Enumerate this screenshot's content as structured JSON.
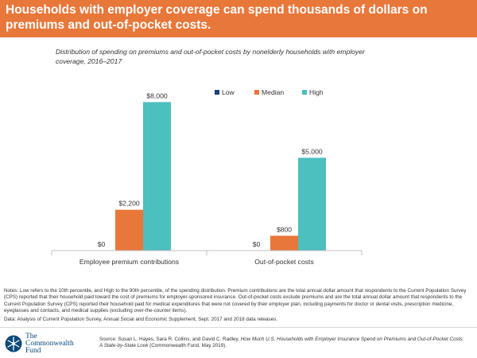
{
  "header": {
    "title": "Households with employer coverage can spend thousands of dollars on premiums and out-of-pocket costs."
  },
  "subtitle": "Distribution of spending on premiums and out-of-pocket costs by nonelderly households with employer coverage, 2016–2017",
  "chart_data": {
    "type": "bar",
    "title": "Distribution of spending on premiums and out-of-pocket costs by nonelderly households with employer coverage, 2016–2017",
    "categories": [
      "Employee premium contributions",
      "Out-of-pocket costs"
    ],
    "series": [
      {
        "name": "Low",
        "values": [
          0,
          0
        ],
        "labels": [
          "$0",
          "$0"
        ],
        "color": "#1f3f7a"
      },
      {
        "name": "Median",
        "values": [
          2200,
          800
        ],
        "labels": [
          "$2,200",
          "$800"
        ],
        "color": "#e8773a"
      },
      {
        "name": "High",
        "values": [
          8000,
          5000
        ],
        "labels": [
          "$8,000",
          "$5,000"
        ],
        "color": "#4cbfbf"
      }
    ],
    "ylim": [
      0,
      9000
    ],
    "xlabel": "",
    "ylabel": "",
    "grid": false,
    "legend_position": "top-right"
  },
  "notes": "Notes: Low refers to the 10th percentile, and High to the 90th percentile, of the spending distribution. Premium contributions are the total annual dollar amount that respondents to the Current Population Survey (CPS) reported that their household paid toward the cost of premiums for employer-sponsored insurance. Out-of-pocket costs exclude premiums and are the total annual dollar amount that respondents to the Current Population Survey (CPS) reported their household paid for medical expenditures that were not covered by their employer plan, including payments for doctor or dental visits, prescription medicine, eyeglasses and contacts, and medical supplies (excluding over-the-counter items).",
  "data_source": "Data: Analysis of Current Population Survey, Annual Social and Economic Supplement, Sept. 2017 and 2018 data releases.",
  "logo": {
    "line1": "The",
    "line2": "Commonwealth",
    "line3": "Fund",
    "icon": "snowflake-icon"
  },
  "source": {
    "prefix": "Source: Susan L. Hayes, Sara R. Collins, and David C. Radley, ",
    "italic": "How Much U.S. Households with Employer Insurance Spend on Premiums and Out-of-Pocket Costs: A State-by-State Look",
    "suffix": " (Commonwealth Fund, May 2019)."
  }
}
